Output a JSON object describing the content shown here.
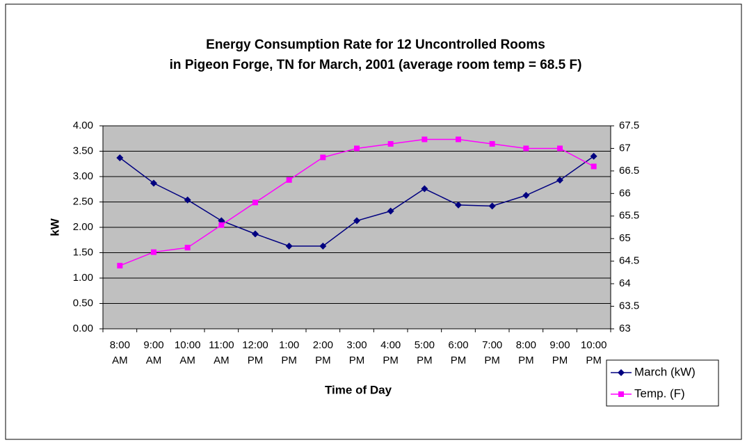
{
  "chart_data": {
    "type": "line",
    "title": [
      "Energy Consumption Rate for 12 Uncontrolled Rooms",
      "in Pigeon Forge, TN for March, 2001 (average room temp = 68.5 F)"
    ],
    "x_label": "Time of Day",
    "y_label": "kW",
    "categories": [
      "8:00 AM",
      "9:00 AM",
      "10:00 AM",
      "11:00 AM",
      "12:00 PM",
      "1:00 PM",
      "2:00 PM",
      "3:00 PM",
      "4:00 PM",
      "5:00 PM",
      "6:00 PM",
      "7:00 PM",
      "8:00 PM",
      "9:00 PM",
      "10:00 PM"
    ],
    "series": [
      {
        "name": "March (kW)",
        "color": "#000080",
        "marker": "diamond",
        "values": [
          3.37,
          2.87,
          2.54,
          2.13,
          1.87,
          1.63,
          1.63,
          2.13,
          2.32,
          2.76,
          2.44,
          2.42,
          2.63,
          2.93,
          3.4
        ]
      },
      {
        "name": "Temp. (F)",
        "color": "#ff00ff",
        "marker": "square",
        "axis": "y2",
        "values": [
          64.4,
          64.7,
          64.8,
          65.3,
          65.8,
          66.3,
          66.8,
          67.0,
          67.1,
          67.2,
          67.2,
          67.1,
          67.0,
          67.0,
          66.6
        ]
      }
    ],
    "ylim": [
      0,
      4
    ],
    "yticks": [
      {
        "value": 0,
        "label": "0.00"
      },
      {
        "value": 0.5,
        "label": "0.50"
      },
      {
        "value": 1,
        "label": "1.00"
      },
      {
        "value": 1.5,
        "label": "1.50"
      },
      {
        "value": 2,
        "label": "2.00"
      },
      {
        "value": 2.5,
        "label": "2.50"
      },
      {
        "value": 3,
        "label": "3.00"
      },
      {
        "value": 3.5,
        "label": "3.50"
      },
      {
        "value": 4,
        "label": "4.00"
      }
    ],
    "y2lim": [
      63,
      67.5
    ],
    "y2ticks": [
      63,
      63.5,
      64,
      64.5,
      65,
      65.5,
      66,
      66.5,
      67,
      67.5
    ],
    "grid": true,
    "background": "#c0c0c0",
    "legend": "bottom-right"
  }
}
